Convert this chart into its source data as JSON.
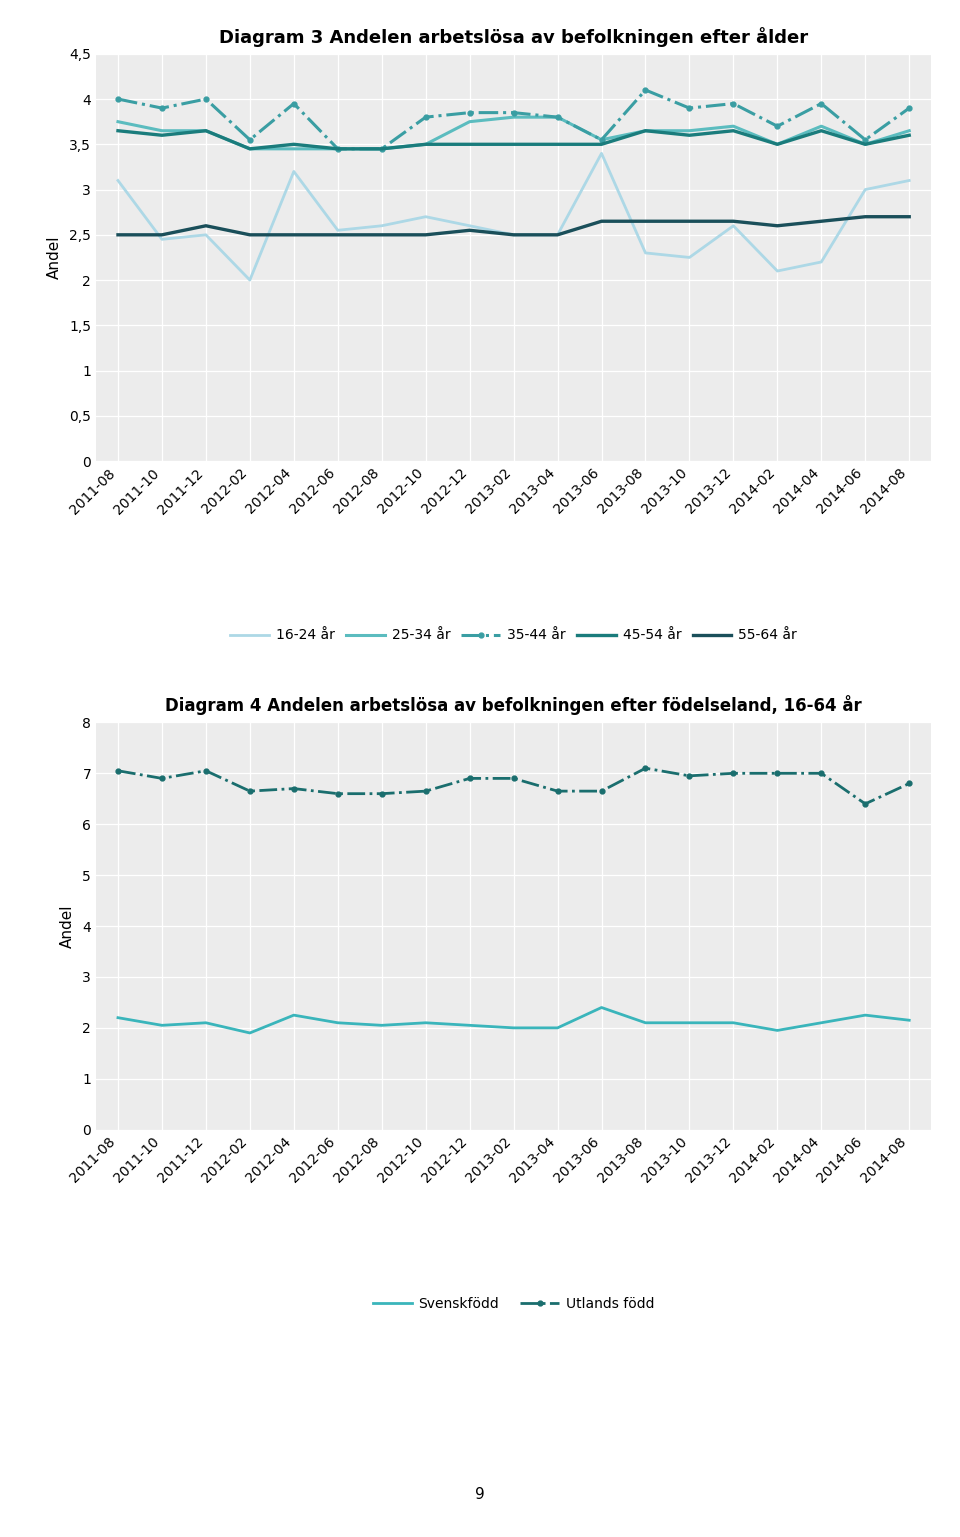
{
  "x_labels": [
    "2011-08",
    "2011-10",
    "2011-12",
    "2012-02",
    "2012-04",
    "2012-06",
    "2012-08",
    "2012-10",
    "2012-12",
    "2013-02",
    "2013-04",
    "2013-06",
    "2013-08",
    "2013-10",
    "2013-12",
    "2014-02",
    "2014-04",
    "2014-06",
    "2014-08"
  ],
  "chart1": {
    "title": "Diagram 3 Andelen arbetslösa av befolkningen efter ålder",
    "ylabel": "Andel",
    "ylim": [
      0,
      4.5
    ],
    "yticks": [
      0,
      0.5,
      1,
      1.5,
      2,
      2.5,
      3,
      3.5,
      4,
      4.5
    ],
    "ytick_labels": [
      "0",
      "0,5",
      "1",
      "1,5",
      "2",
      "2,5",
      "3",
      "3,5",
      "4",
      "4,5"
    ],
    "series": {
      "16-24 år": {
        "values": [
          3.1,
          2.45,
          2.5,
          2.0,
          3.2,
          2.55,
          2.6,
          2.7,
          2.6,
          2.5,
          2.5,
          3.4,
          2.3,
          2.25,
          2.6,
          2.1,
          2.2,
          3.0,
          3.1
        ],
        "color": "#add8e6",
        "linestyle": "solid",
        "linewidth": 2.0,
        "marker": "none"
      },
      "25-34 år": {
        "values": [
          3.75,
          3.65,
          3.65,
          3.45,
          3.45,
          3.45,
          3.45,
          3.5,
          3.75,
          3.8,
          3.8,
          3.55,
          3.65,
          3.65,
          3.7,
          3.5,
          3.7,
          3.5,
          3.65
        ],
        "color": "#5bbcbf",
        "linestyle": "solid",
        "linewidth": 2.2,
        "marker": "none"
      },
      "35-44 år": {
        "values": [
          4.0,
          3.9,
          4.0,
          3.55,
          3.95,
          3.45,
          3.45,
          3.8,
          3.85,
          3.85,
          3.8,
          3.55,
          4.1,
          3.9,
          3.95,
          3.7,
          3.95,
          3.55,
          3.9
        ],
        "color": "#3a9ea3",
        "linestyle": "dashdot",
        "linewidth": 2.2,
        "marker": "o",
        "markersize": 3.5
      },
      "45-54 år": {
        "values": [
          3.65,
          3.6,
          3.65,
          3.45,
          3.5,
          3.45,
          3.45,
          3.5,
          3.5,
          3.5,
          3.5,
          3.5,
          3.65,
          3.6,
          3.65,
          3.5,
          3.65,
          3.5,
          3.6
        ],
        "color": "#1a7c7c",
        "linestyle": "solid",
        "linewidth": 2.4,
        "marker": "none"
      },
      "55-64 år": {
        "values": [
          2.5,
          2.5,
          2.6,
          2.5,
          2.5,
          2.5,
          2.5,
          2.5,
          2.55,
          2.5,
          2.5,
          2.65,
          2.65,
          2.65,
          2.65,
          2.6,
          2.65,
          2.7,
          2.7
        ],
        "color": "#1a4f5a",
        "linestyle": "solid",
        "linewidth": 2.4,
        "marker": "none"
      }
    },
    "legend_order": [
      "16-24 år",
      "25-34 år",
      "35-44 år",
      "45-54 år",
      "55-64 år"
    ]
  },
  "chart2": {
    "title": "Diagram 4 Andelen arbetslösa av befolkningen efter födelseland, 16-64 år",
    "ylabel": "Andel",
    "ylim": [
      0,
      8
    ],
    "yticks": [
      0,
      1,
      2,
      3,
      4,
      5,
      6,
      7,
      8
    ],
    "ytick_labels": [
      "0",
      "1",
      "2",
      "3",
      "4",
      "5",
      "6",
      "7",
      "8"
    ],
    "series": {
      "Svenskfödd": {
        "values": [
          2.2,
          2.05,
          2.1,
          1.9,
          2.25,
          2.1,
          2.05,
          2.1,
          2.05,
          2.0,
          2.0,
          2.4,
          2.1,
          2.1,
          2.1,
          1.95,
          2.1,
          2.25,
          2.15
        ],
        "color": "#3ab5bb",
        "linestyle": "solid",
        "linewidth": 2.0,
        "marker": "none"
      },
      "Utlands född": {
        "values": [
          7.05,
          6.9,
          7.05,
          6.65,
          6.7,
          6.6,
          6.6,
          6.65,
          6.9,
          6.9,
          6.65,
          6.65,
          7.1,
          6.95,
          7.0,
          7.0,
          7.0,
          6.4,
          6.8
        ],
        "color": "#1a6e6e",
        "linestyle": "dashdot",
        "linewidth": 2.0,
        "marker": "o",
        "markersize": 3.5
      }
    },
    "legend_order": [
      "Svenskfödd",
      "Utlands född"
    ]
  },
  "page_number": "9"
}
